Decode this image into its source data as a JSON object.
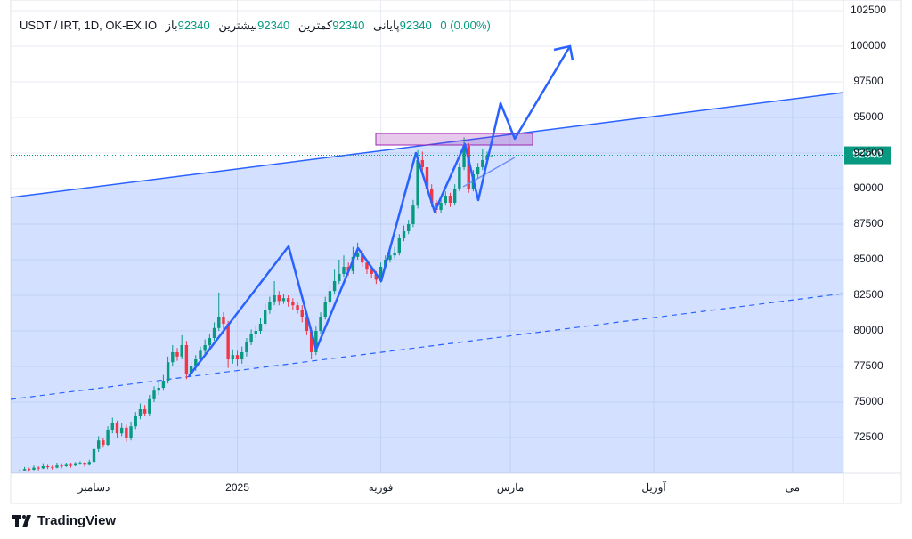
{
  "chart_data": {
    "type": "candlestick",
    "symbol": "USDT / IRT, 1D, OK-EX.IO",
    "ohlc_labels": {
      "open": "باز",
      "high": "بیشترین",
      "low": "کمترین",
      "close": "پایانی"
    },
    "change": "0 (0.00%)",
    "x": [
      -16,
      -15,
      -14,
      -13,
      -12,
      -11,
      -10,
      -9,
      -8,
      -7,
      -6,
      -5,
      -4,
      -3,
      -2,
      -1,
      0,
      1,
      2,
      3,
      4,
      5,
      6,
      7,
      8,
      9,
      10,
      11,
      12,
      13,
      14,
      15,
      16,
      17,
      18,
      19,
      20,
      21,
      22,
      23,
      24,
      25,
      26,
      27,
      28,
      29,
      30,
      31,
      32,
      33,
      34,
      35,
      36,
      37,
      38,
      39,
      40,
      41,
      42,
      43,
      44,
      45,
      46,
      47,
      48,
      49,
      50,
      51,
      52,
      53,
      54,
      55,
      56,
      57,
      58,
      59,
      60,
      61,
      62,
      63,
      64,
      65,
      66,
      67,
      68,
      69,
      70,
      71,
      72,
      73,
      74,
      75,
      76,
      77,
      78,
      79,
      80,
      81,
      82,
      83,
      84,
      85,
      86
    ],
    "open": [
      70150,
      70200,
      70300,
      70250,
      70400,
      70350,
      70500,
      70450,
      70400,
      70550,
      70500,
      70600,
      70550,
      70650,
      70700,
      70600,
      70800,
      71700,
      72300,
      72000,
      73000,
      73500,
      72800,
      73200,
      72500,
      73300,
      74000,
      74500,
      74200,
      75200,
      75800,
      76000,
      76500,
      77800,
      78500,
      78200,
      79000,
      77000,
      77500,
      78000,
      78600,
      79000,
      79500,
      80200,
      81000,
      80500,
      78000,
      78300,
      78000,
      78500,
      79200,
      79800,
      80000,
      80500,
      81500,
      82000,
      82500,
      82100,
      82300,
      82000,
      81800,
      81500,
      81000,
      80000,
      78500,
      80000,
      81000,
      82000,
      82800,
      83500,
      84000,
      84500,
      84200,
      85200,
      85500,
      84800,
      84300,
      84000,
      83600,
      84500,
      85000,
      85300,
      85500,
      86500,
      87000,
      87500,
      88800,
      92000,
      91500,
      90000,
      89000,
      88500,
      89000,
      89500,
      89000,
      90000,
      91500,
      93000,
      90000,
      91000,
      91500,
      92000,
      92340
    ],
    "high": [
      70350,
      70450,
      70400,
      70550,
      70500,
      70650,
      70600,
      70550,
      70700,
      70650,
      70750,
      70700,
      70800,
      70850,
      70800,
      70950,
      71900,
      72600,
      72500,
      73300,
      73900,
      73700,
      73500,
      73400,
      73600,
      74300,
      74900,
      74800,
      75500,
      76100,
      76400,
      76900,
      78200,
      79000,
      78800,
      79700,
      79300,
      77900,
      78300,
      78900,
      79400,
      79800,
      80600,
      82700,
      81300,
      80700,
      78700,
      78600,
      78900,
      79500,
      80100,
      80400,
      80900,
      81900,
      82400,
      83500,
      82800,
      82600,
      82500,
      82300,
      82000,
      81800,
      81300,
      80200,
      80300,
      81300,
      82400,
      83200,
      84300,
      85000,
      85300,
      84800,
      85900,
      86200,
      85700,
      85000,
      84500,
      84200,
      84800,
      85300,
      85600,
      85900,
      86800,
      87400,
      87800,
      89200,
      92700,
      92600,
      91800,
      90300,
      89200,
      89300,
      89800,
      89700,
      90300,
      91800,
      93600,
      93200,
      91300,
      91800,
      92800,
      92600,
      92340
    ],
    "low": [
      70000,
      70150,
      70100,
      70200,
      70200,
      70300,
      70300,
      70250,
      70350,
      70350,
      70450,
      70400,
      70500,
      70600,
      70450,
      70550,
      70700,
      71500,
      71800,
      71900,
      72800,
      72500,
      72600,
      72200,
      72300,
      73100,
      73800,
      74000,
      74000,
      75000,
      75500,
      75800,
      76300,
      77500,
      77900,
      78000,
      76600,
      76700,
      77200,
      77800,
      78300,
      78700,
      79300,
      80000,
      80100,
      77400,
      77700,
      77500,
      77700,
      78200,
      79000,
      79500,
      79800,
      80300,
      81200,
      81800,
      81800,
      81900,
      81700,
      81500,
      81200,
      80600,
      79700,
      78000,
      78300,
      79800,
      80800,
      81800,
      82600,
      83300,
      83800,
      83900,
      84000,
      85000,
      84500,
      84000,
      83700,
      83300,
      83400,
      84300,
      84800,
      85100,
      85300,
      86300,
      86800,
      87300,
      88600,
      91200,
      89700,
      88700,
      88200,
      88300,
      88800,
      88700,
      88800,
      89800,
      91300,
      89700,
      89800,
      90700,
      91300,
      91800,
      92340
    ],
    "close": [
      70200,
      70300,
      70250,
      70400,
      70350,
      70500,
      70450,
      70400,
      70550,
      70500,
      70600,
      70550,
      70650,
      70700,
      70600,
      70800,
      71700,
      72300,
      72000,
      73000,
      73500,
      72800,
      73200,
      72500,
      73300,
      74000,
      74500,
      74200,
      75200,
      75800,
      76000,
      76500,
      77800,
      78500,
      78200,
      79000,
      77000,
      77500,
      78000,
      78600,
      79000,
      79500,
      80200,
      81000,
      80500,
      78000,
      78300,
      78000,
      78500,
      79200,
      79800,
      80000,
      80500,
      81500,
      82000,
      82500,
      82100,
      82300,
      82000,
      81800,
      81500,
      81000,
      80000,
      78500,
      80000,
      81000,
      82000,
      82800,
      83500,
      84000,
      84500,
      84200,
      85200,
      85500,
      84800,
      84300,
      84000,
      83600,
      84500,
      85000,
      85300,
      85500,
      86500,
      87000,
      87500,
      88800,
      92000,
      91500,
      90000,
      89000,
      88500,
      89000,
      89500,
      89000,
      90000,
      91500,
      93000,
      90000,
      91000,
      91500,
      92000,
      92340,
      92340
    ],
    "up_color": "#089981",
    "down_color": "#f23645",
    "xlim": [
      -18,
      162
    ],
    "xticks": [
      {
        "value": 0,
        "label": "دسامبر"
      },
      {
        "value": 31,
        "label": "2025"
      },
      {
        "value": 62,
        "label": "فوریه"
      },
      {
        "value": 90,
        "label": "مارس"
      },
      {
        "value": 121,
        "label": "آوریل"
      },
      {
        "value": 151,
        "label": "می"
      }
    ],
    "ylim": [
      70000,
      103250
    ],
    "yticks": [
      72500,
      75000,
      77500,
      80000,
      82500,
      85000,
      87500,
      90000,
      92500,
      95000,
      97500,
      100000,
      102500
    ],
    "grid": true
  },
  "brand": "TradingView"
}
